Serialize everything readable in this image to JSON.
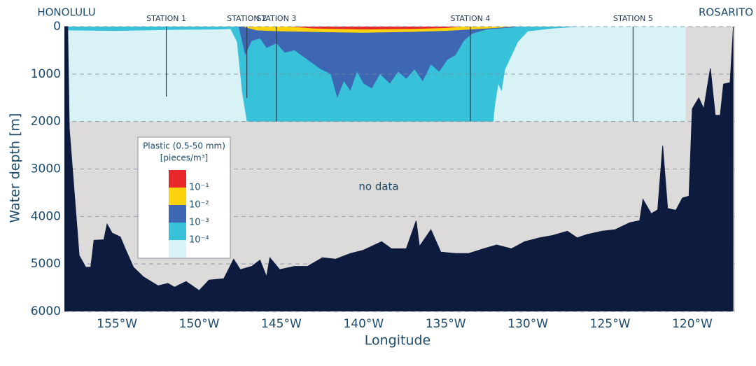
{
  "chart_data": {
    "type": "section",
    "xlabel": "Longitude",
    "ylabel": "Water depth [m]",
    "annotation": "no data",
    "end_labels": {
      "left": "HONOLULU",
      "right": "ROSARITO"
    },
    "xlim": [
      -158.2,
      -117.4
    ],
    "ylim": [
      0,
      6000
    ],
    "yticks": [
      0,
      1000,
      2000,
      3000,
      4000,
      5000,
      6000
    ],
    "xticks": [
      {
        "value": -155,
        "label": "155°W"
      },
      {
        "value": -150,
        "label": "150°W"
      },
      {
        "value": -145,
        "label": "145°W"
      },
      {
        "value": -140,
        "label": "140°W"
      },
      {
        "value": -135,
        "label": "135°W"
      },
      {
        "value": -130,
        "label": "130°W"
      },
      {
        "value": -125,
        "label": "125°W"
      },
      {
        "value": -120,
        "label": "120°W"
      }
    ],
    "grid": true,
    "nodata_color": "#dddbd9",
    "sampled": {
      "lon": [
        -158.0,
        -120.4
      ],
      "depth": 2000,
      "color": "#d8f2f6"
    },
    "stations": [
      {
        "name": "STATION 1",
        "lon": -152.0,
        "depth": 1475
      },
      {
        "name": "STATION 2",
        "lon": -147.1,
        "depth": 1500
      },
      {
        "name": "STATION 3",
        "lon": -145.3,
        "depth": 2000
      },
      {
        "name": "STATION 4",
        "lon": -133.5,
        "depth": 2000
      },
      {
        "name": "STATION 5",
        "lon": -123.6,
        "depth": 2000
      }
    ],
    "layers": [
      {
        "color": "#38c2d9",
        "lon": [
          -158.0,
          -158.0,
          -155,
          -152,
          -149,
          -148.1,
          -147.7,
          -147.4,
          -147.1,
          -132.1,
          -132.0,
          -131.8,
          -131.6,
          -131.4,
          -131.1,
          -130.6,
          -130.0,
          -128.5,
          -126.8
        ],
        "depth": [
          0,
          80,
          90,
          70,
          60,
          50,
          320,
          1360,
          2000,
          2000,
          1650,
          1210,
          1360,
          915,
          690,
          320,
          100,
          40,
          0
        ]
      },
      {
        "color": "#3d66b3",
        "lon": [
          -147.6,
          -147.2,
          -146.8,
          -146.3,
          -145.9,
          -145.3,
          -144.8,
          -144.2,
          -143.4,
          -142.6,
          -142.0,
          -141.6,
          -141.2,
          -140.8,
          -140.4,
          -140.0,
          -139.5,
          -139.0,
          -138.4,
          -137.9,
          -137.4,
          -136.9,
          -136.4,
          -135.9,
          -135.4,
          -134.9,
          -134.4,
          -133.9,
          -133.4,
          -132.5,
          -131.0,
          -130.5
        ],
        "depth": [
          0,
          600,
          300,
          250,
          450,
          350,
          550,
          500,
          700,
          900,
          1000,
          1500,
          1150,
          1350,
          950,
          1200,
          1300,
          1000,
          1200,
          950,
          1100,
          900,
          1150,
          800,
          950,
          700,
          600,
          300,
          150,
          60,
          20,
          0
        ]
      },
      {
        "color": "#fcd20c",
        "lon": [
          -147.4,
          -146.5,
          -145,
          -142,
          -140,
          -137,
          -135,
          -133.5,
          -132,
          -130.8
        ],
        "depth": [
          0,
          80,
          100,
          120,
          130,
          110,
          90,
          60,
          30,
          0
        ]
      },
      {
        "color": "#e8262a",
        "lon": [
          -144.5,
          -143,
          -140,
          -137,
          -135,
          -134
        ],
        "depth": [
          0,
          40,
          60,
          50,
          30,
          0
        ]
      }
    ],
    "seafloor": {
      "color": "#0d1b3e",
      "lon": [
        -158.2,
        -158.0,
        -157.9,
        -157.3,
        -156.9,
        -156.6,
        -156.4,
        -155.8,
        -155.6,
        -155.3,
        -154.8,
        -154.5,
        -154.0,
        -153.4,
        -152.5,
        -151.9,
        -151.5,
        -150.8,
        -150.0,
        -149.4,
        -148.5,
        -147.9,
        -147.5,
        -146.8,
        -146.3,
        -145.9,
        -145.7,
        -145.1,
        -144.2,
        -143.4,
        -142.5,
        -141.7,
        -140.8,
        -140.0,
        -138.9,
        -138.3,
        -137.4,
        -136.8,
        -136.6,
        -135.9,
        -135.3,
        -134.4,
        -133.6,
        -132.7,
        -131.9,
        -131.0,
        -130.2,
        -129.3,
        -128.5,
        -127.6,
        -127.0,
        -126.4,
        -125.5,
        -124.7,
        -123.8,
        -123.2,
        -123.0,
        -122.5,
        -122.1,
        -121.8,
        -121.5,
        -121.0,
        -120.6,
        -120.2,
        -120.0,
        -119.6,
        -119.3,
        -118.9,
        -118.6,
        -118.3,
        -118.1,
        -117.7,
        -117.5
      ],
      "depth": [
        0,
        0,
        2150,
        4820,
        5070,
        5070,
        4500,
        4490,
        4160,
        4350,
        4430,
        4680,
        5070,
        5270,
        5460,
        5410,
        5490,
        5370,
        5560,
        5340,
        5310,
        4900,
        5120,
        5050,
        4920,
        5270,
        4870,
        5120,
        5050,
        5050,
        4870,
        4900,
        4780,
        4710,
        4530,
        4680,
        4680,
        4090,
        4630,
        4280,
        4750,
        4780,
        4780,
        4680,
        4600,
        4680,
        4530,
        4450,
        4400,
        4310,
        4450,
        4380,
        4310,
        4280,
        4130,
        4090,
        3640,
        3940,
        3860,
        2510,
        3830,
        3870,
        3610,
        3570,
        1730,
        1500,
        1730,
        880,
        1870,
        1870,
        1210,
        1180,
        0
      ]
    },
    "legend": {
      "title": "Plastic (0.5-50 mm)",
      "unit": "[pieces/m³]",
      "colors": [
        "#e8262a",
        "#fcd20c",
        "#3d66b3",
        "#38c2d9",
        "#d8f2f6"
      ],
      "labels": [
        "10⁻¹",
        "10⁻²",
        "10⁻³",
        "10⁻⁴"
      ]
    }
  }
}
